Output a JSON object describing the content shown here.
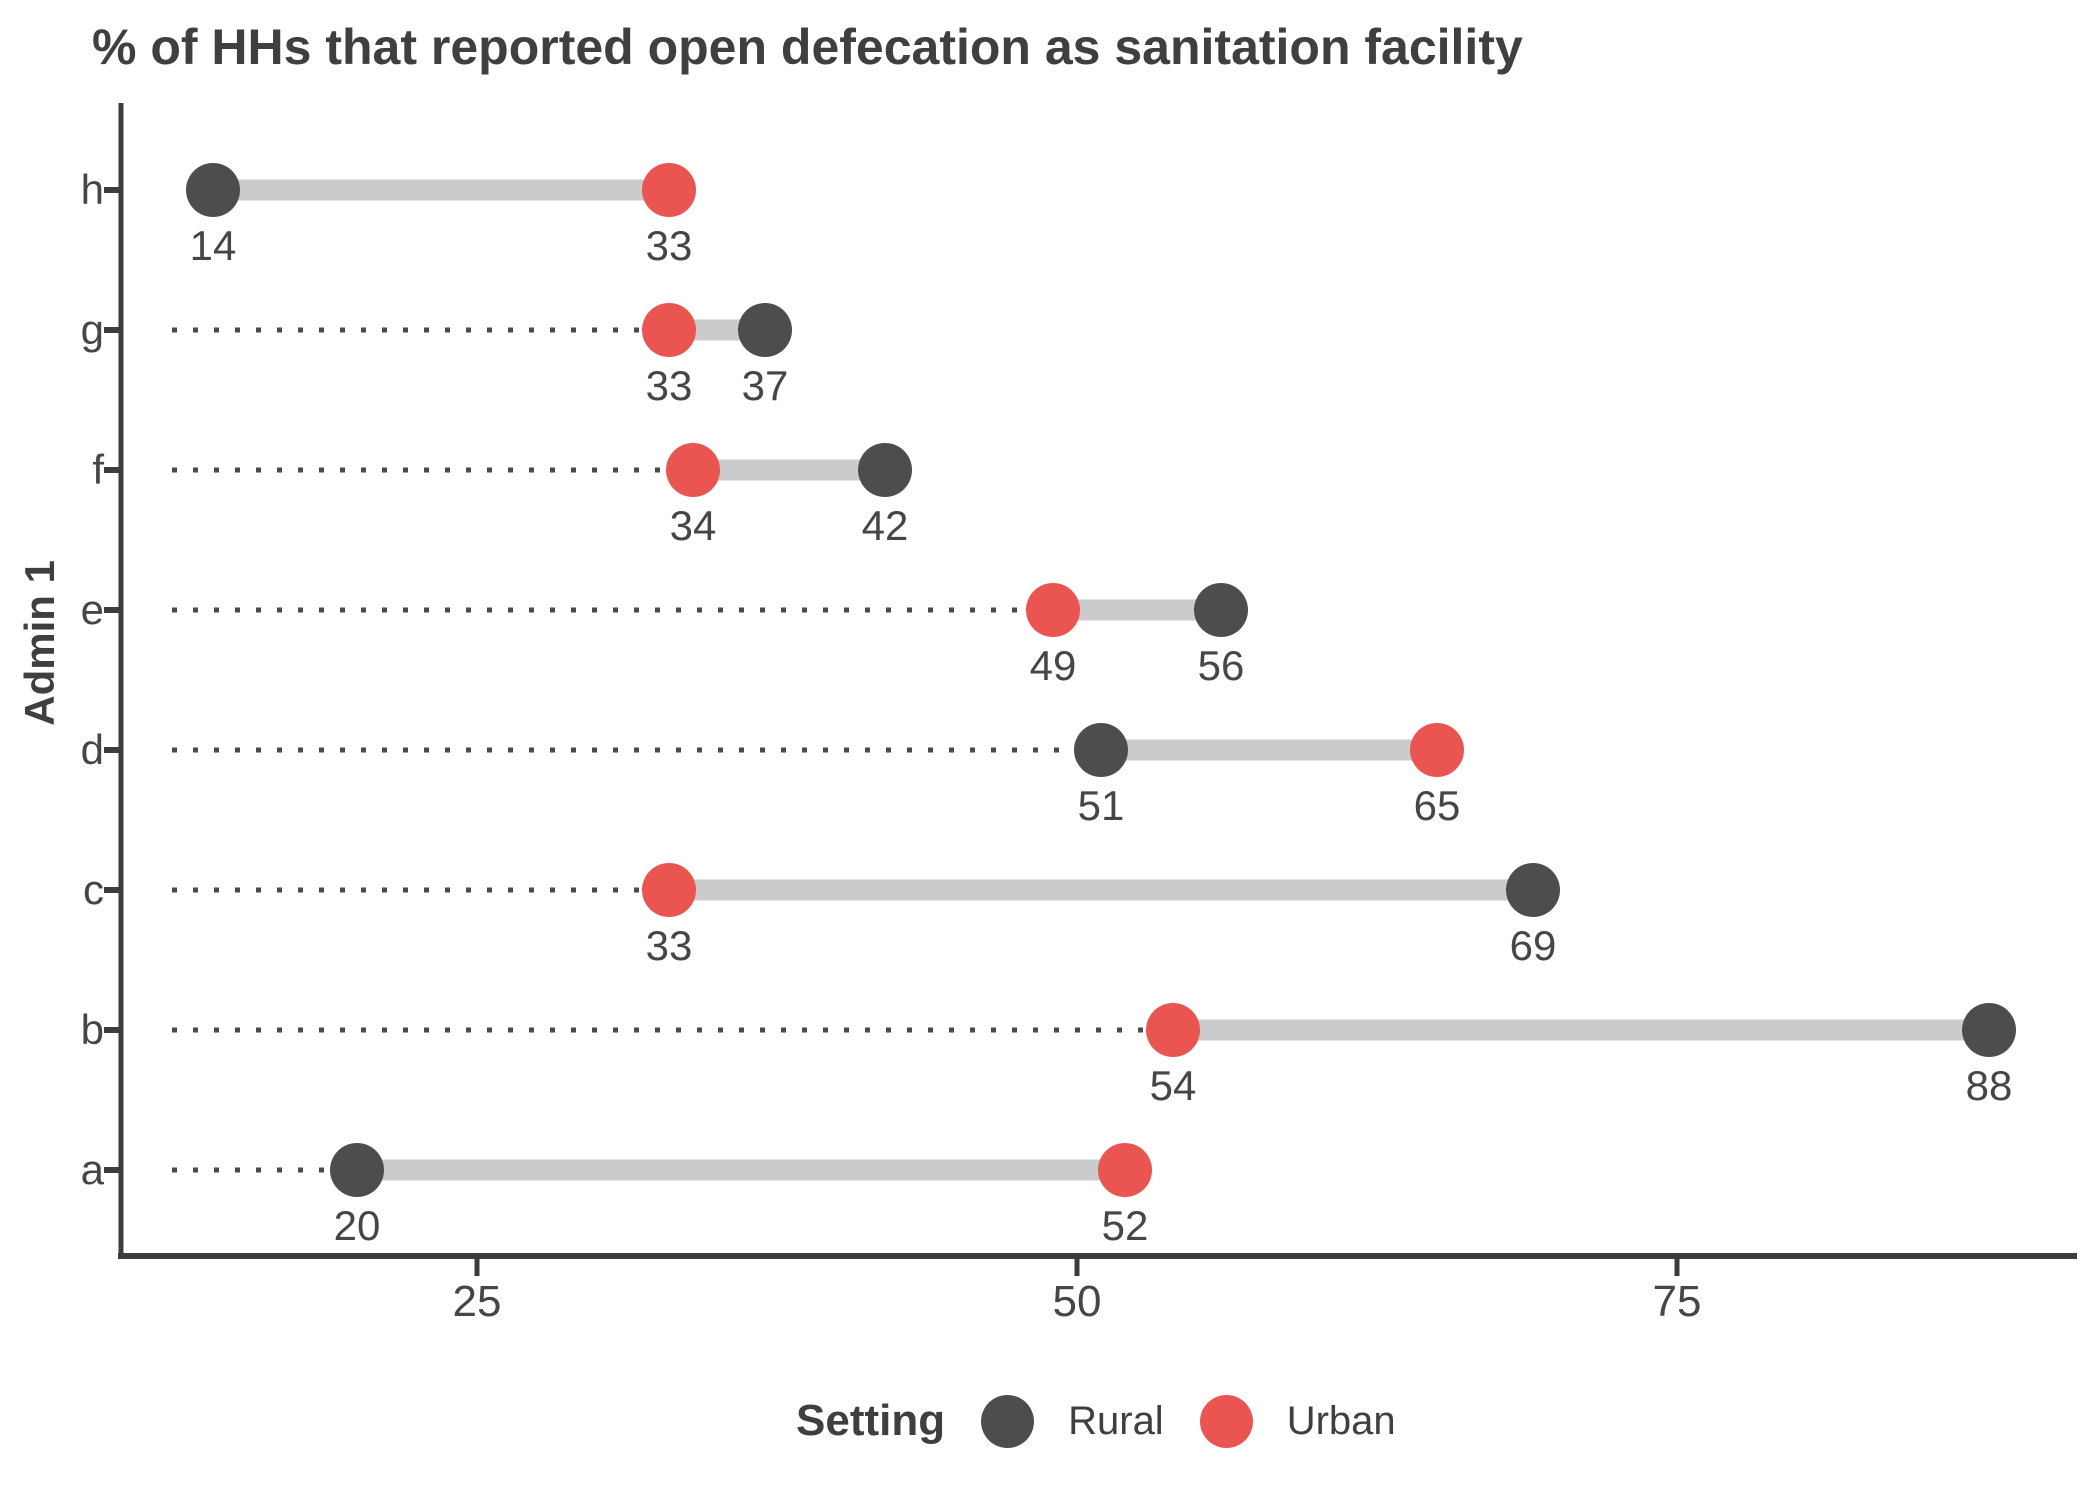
{
  "chart_data": {
    "type": "dumbbell",
    "title": "% of HHs that reported open defecation as sanitation facility",
    "xlabel": "",
    "ylabel": "Admin 1",
    "x_ticks": [
      25,
      50,
      75
    ],
    "x_axis_range": [
      10.5,
      91.5
    ],
    "categories_top_to_bottom": [
      "h",
      "g",
      "f",
      "e",
      "d",
      "c",
      "b",
      "a"
    ],
    "rows": [
      {
        "category": "h",
        "rural": 14,
        "urban": 33,
        "leader_dots": false
      },
      {
        "category": "g",
        "rural": 37,
        "urban": 33,
        "leader_dots": true
      },
      {
        "category": "f",
        "rural": 42,
        "urban": 34,
        "leader_dots": true
      },
      {
        "category": "e",
        "rural": 56,
        "urban": 49,
        "leader_dots": true
      },
      {
        "category": "d",
        "rural": 51,
        "urban": 65,
        "leader_dots": true
      },
      {
        "category": "c",
        "rural": 69,
        "urban": 33,
        "leader_dots": true
      },
      {
        "category": "b",
        "rural": 88,
        "urban": 54,
        "leader_dots": true
      },
      {
        "category": "a",
        "rural": 20,
        "urban": 52,
        "leader_dots": true
      }
    ],
    "legend": {
      "title": "Setting",
      "entries": [
        {
          "label": "Rural",
          "color": "#4D4D4D"
        },
        {
          "label": "Urban",
          "color": "#EB5551"
        }
      ],
      "position": "bottom"
    },
    "colors": {
      "rural": "#4D4D4D",
      "urban": "#EB5551",
      "connector": "#CBCBCB",
      "leader_line": "#4A4A4A",
      "axis_line": "#3C3C3C",
      "value_label_text": "#464646",
      "tick_label_text": "#464646",
      "title_text": "#3F3F3F"
    },
    "grid": false
  }
}
